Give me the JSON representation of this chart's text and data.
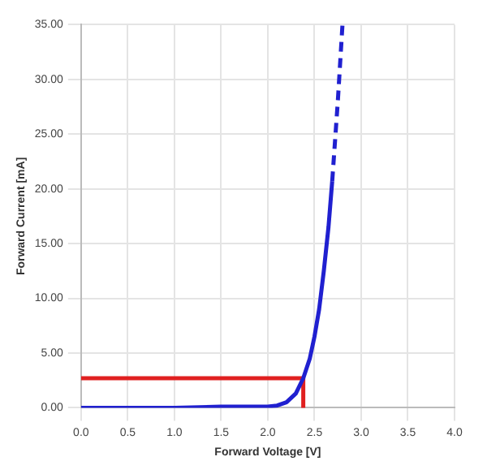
{
  "chart_data": {
    "type": "line",
    "xlabel": "Forward Voltage [V]",
    "ylabel": "Forward Current [mA]",
    "xlim": [
      0,
      4
    ],
    "ylim": [
      0,
      35
    ],
    "xticks": [
      {
        "value": 0,
        "label": "0.0"
      },
      {
        "value": 0.5,
        "label": "0.5"
      },
      {
        "value": 1,
        "label": "1.0"
      },
      {
        "value": 1.5,
        "label": "1.5"
      },
      {
        "value": 2,
        "label": "2.0"
      },
      {
        "value": 2.5,
        "label": "2.5"
      },
      {
        "value": 3,
        "label": "3.0"
      },
      {
        "value": 3.5,
        "label": "3.5"
      },
      {
        "value": 4,
        "label": "4.0"
      }
    ],
    "yticks": [
      {
        "value": 0,
        "label": "0.00"
      },
      {
        "value": 5,
        "label": "5.00"
      },
      {
        "value": 10,
        "label": "10.00"
      },
      {
        "value": 15,
        "label": "15.00"
      },
      {
        "value": 20,
        "label": "20.00"
      },
      {
        "value": 25,
        "label": "25.00"
      },
      {
        "value": 30,
        "label": "30.00"
      },
      {
        "value": 35,
        "label": "35.00"
      }
    ],
    "grid": true,
    "marker": "none",
    "series": [
      {
        "color": "#2020d0",
        "line_style": "solid",
        "x": [
          0,
          1,
          1.5,
          2,
          2.1,
          2.2,
          2.3,
          2.38,
          2.45,
          2.5,
          2.55,
          2.6,
          2.65,
          2.69
        ],
        "values": [
          0,
          0,
          0.1,
          0.1,
          0.2,
          0.5,
          1.3,
          2.7,
          4.5,
          6.5,
          9,
          12.5,
          16.5,
          20.7
        ]
      },
      {
        "color": "#2020d0",
        "line_style": "dashed",
        "x": [
          2.69,
          2.75,
          2.8
        ],
        "values": [
          20.7,
          28,
          35
        ]
      },
      {
        "color": "#e02020",
        "line_style": "solid",
        "x": [
          0,
          2.38
        ],
        "values": [
          2.7,
          2.7
        ]
      },
      {
        "color": "#e02020",
        "line_style": "solid",
        "x": [
          2.38,
          2.38
        ],
        "values": [
          2.7,
          0
        ]
      }
    ]
  }
}
